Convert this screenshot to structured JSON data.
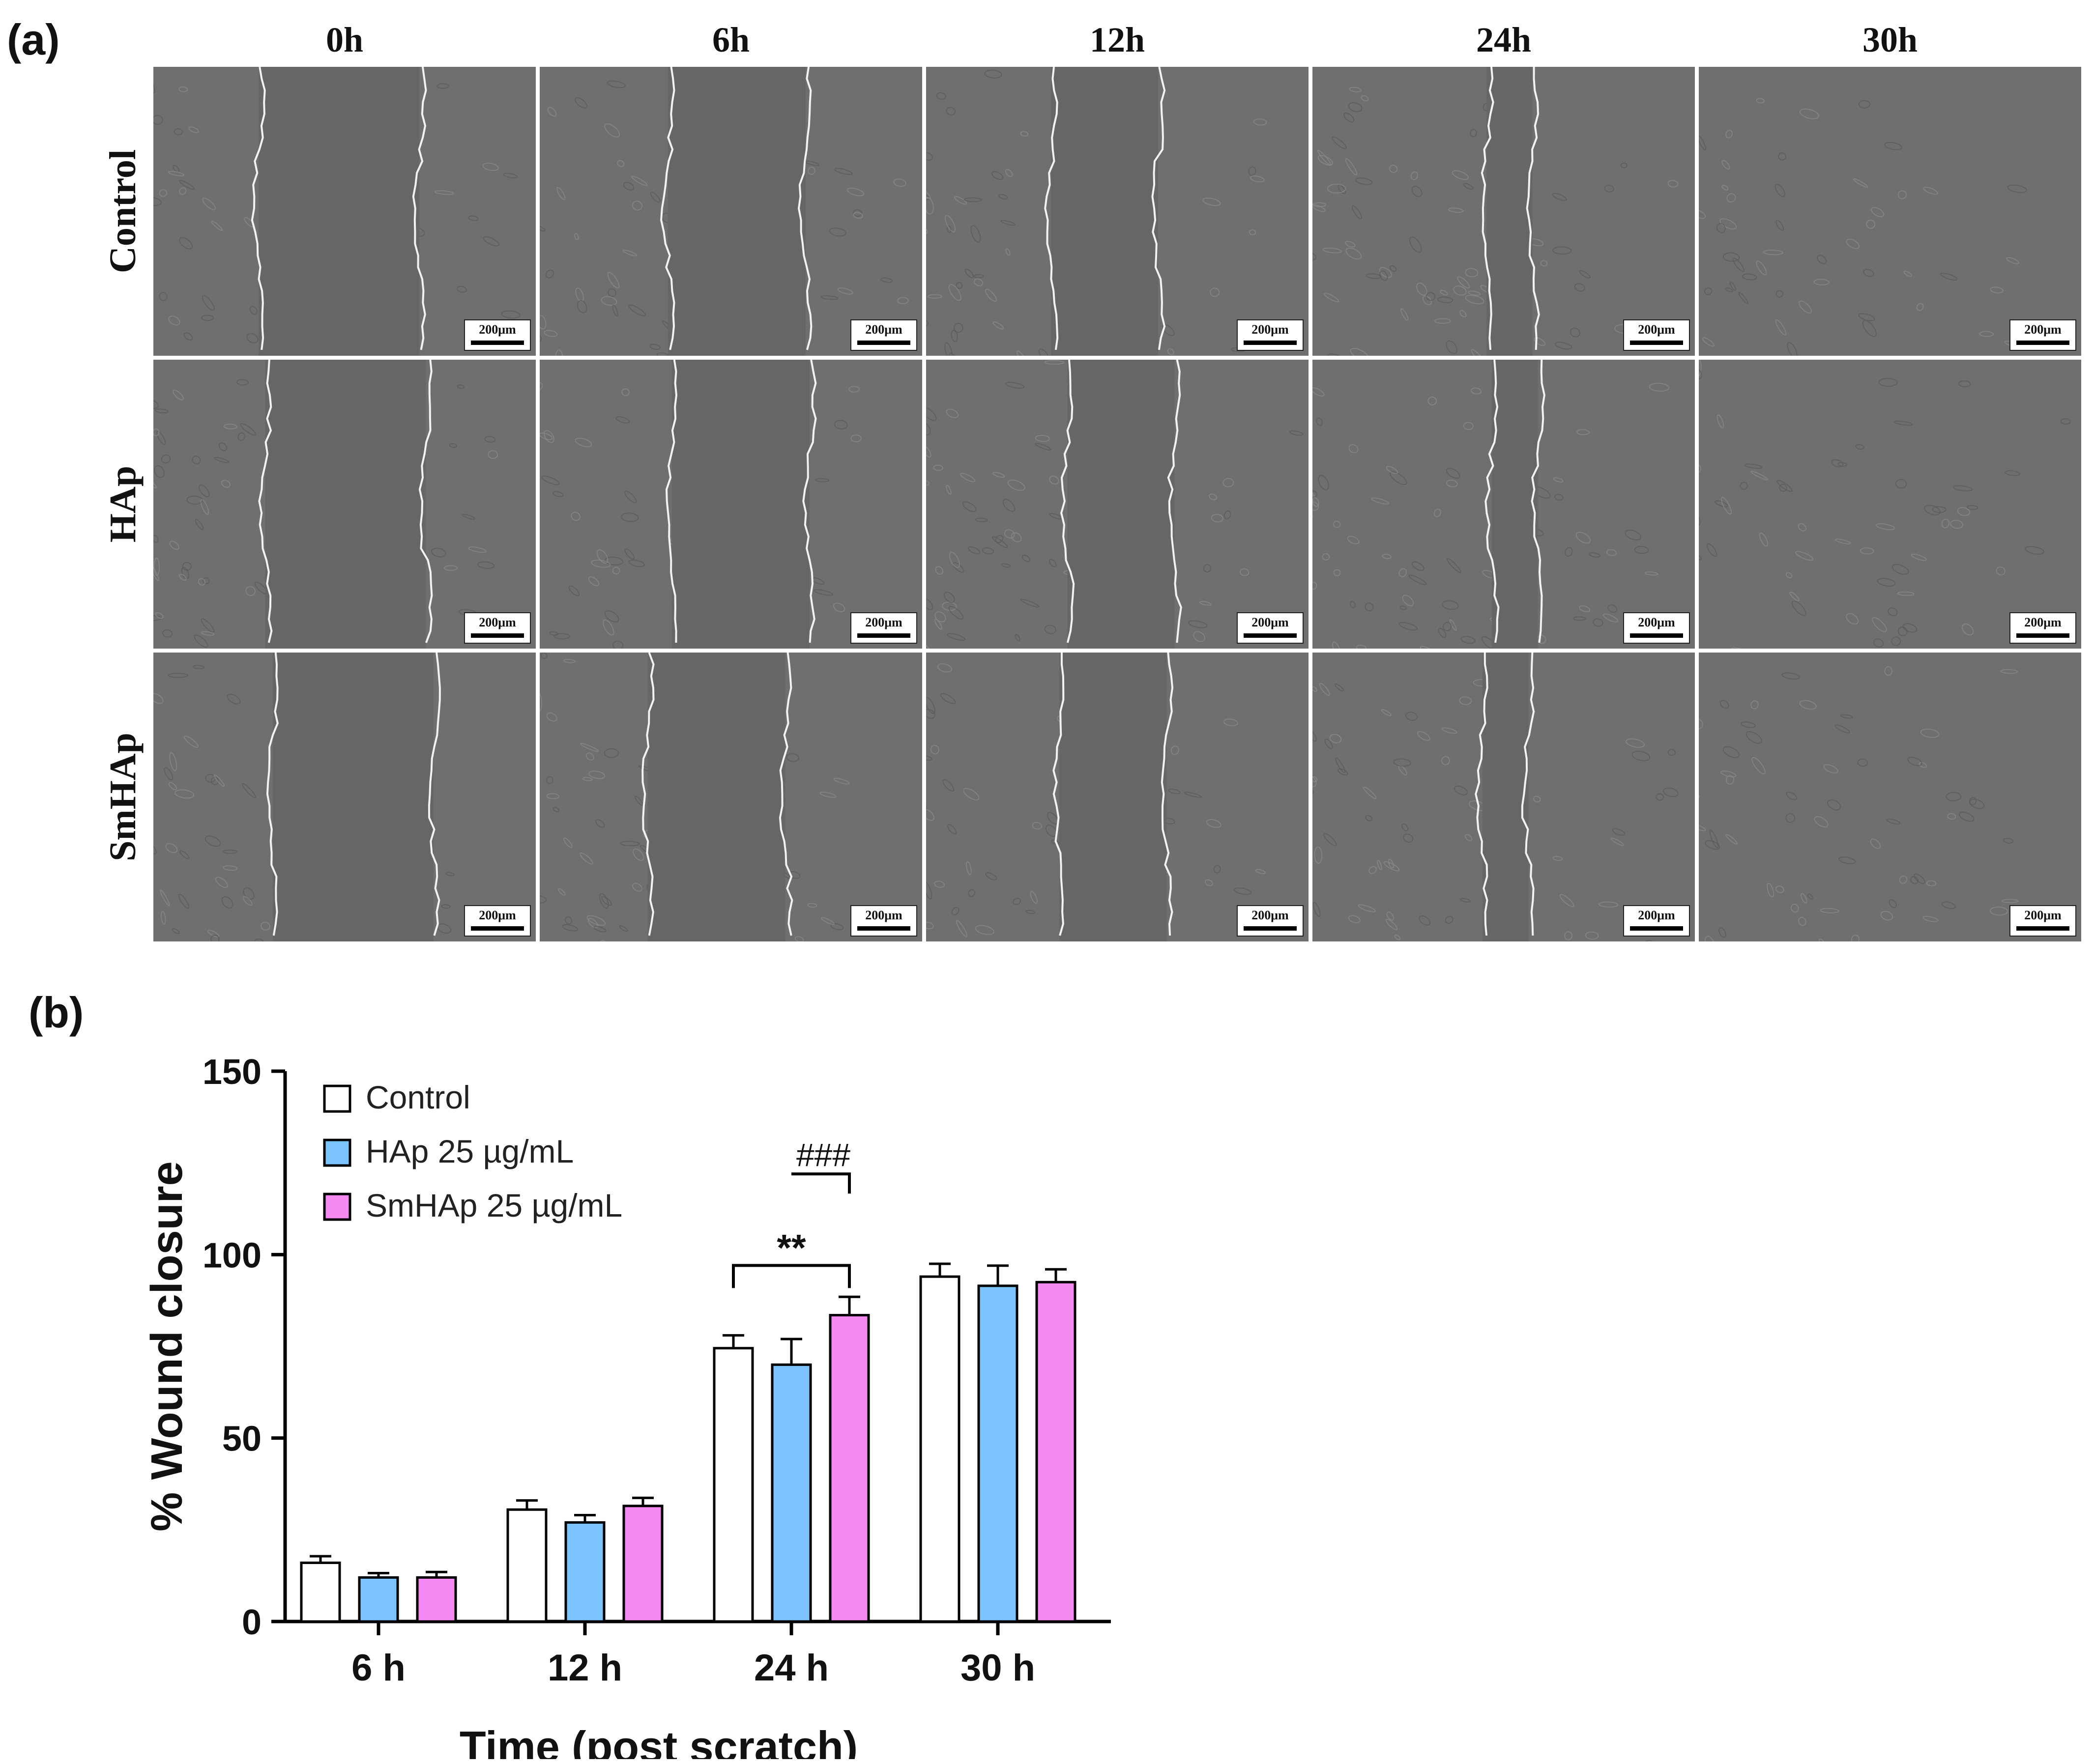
{
  "panel_a": {
    "label": "(a)",
    "columns": [
      "0h",
      "6h",
      "12h",
      "24h",
      "30h"
    ],
    "rows": [
      "Control",
      "HAp",
      "SmHAp"
    ],
    "scale_bar": "200μm"
  },
  "panel_b": {
    "label": "(b)",
    "significance": {
      "double_star": "**",
      "hash": "###"
    }
  },
  "colors": {
    "control": "#ffffff",
    "hap": "#7cc4ff",
    "smhap": "#f589f2",
    "axis": "#000000",
    "micrograph": "#6e6e6e"
  },
  "chart_data": {
    "type": "bar",
    "categories": [
      "6 h",
      "12 h",
      "24 h",
      "30 h"
    ],
    "xlabel": "Time (post scratch)",
    "ylabel": "% Wound closure",
    "ylim": [
      0,
      150
    ],
    "yticks": [
      0,
      50,
      100,
      150
    ],
    "legend_position": "top-left",
    "series": [
      {
        "name": "Control",
        "values": [
          16,
          30.5,
          74.5,
          94
        ],
        "errors": [
          1.8,
          2.5,
          3.5,
          3.5
        ]
      },
      {
        "name": "HAp 25 µg/mL",
        "values": [
          12,
          27,
          70,
          91.5
        ],
        "errors": [
          1.2,
          2,
          7,
          5.5
        ]
      },
      {
        "name": "SmHAp 25 µg/mL",
        "values": [
          12,
          31.5,
          83.5,
          92.5
        ],
        "errors": [
          1.5,
          2.2,
          5,
          3.5
        ]
      }
    ],
    "annotations": [
      {
        "text": "**",
        "from_series": 0,
        "to_series": 2,
        "category": "24 h"
      },
      {
        "text": "###",
        "from_series": 1,
        "to_series": 2,
        "category": "24 h"
      }
    ]
  }
}
